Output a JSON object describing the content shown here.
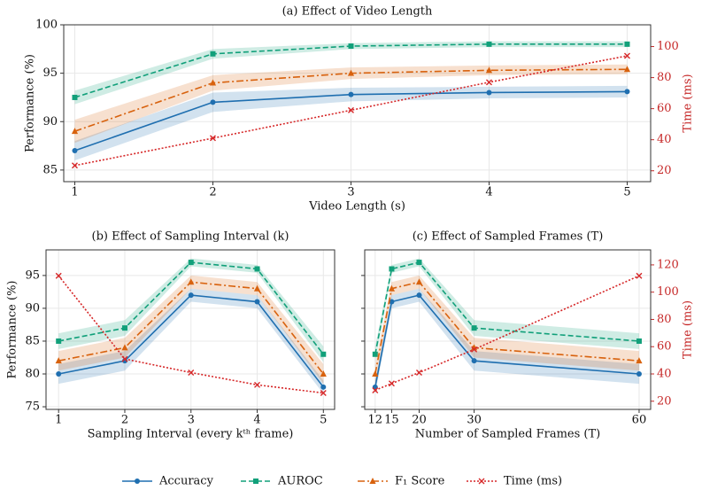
{
  "chart_data": [
    {
      "type": "line",
      "title": "(a) Effect of Video Length",
      "xlabel": "Video Length (s)",
      "ylabel": "Performance (%)",
      "y2label": "Time (ms)",
      "x": [
        1,
        2,
        3,
        4,
        5
      ],
      "xticks": [
        1,
        2,
        3,
        4,
        5
      ],
      "xlim": [
        0.92,
        5.17
      ],
      "ylim": [
        83.8,
        100
      ],
      "yticks": [
        85,
        90,
        95,
        100
      ],
      "y2lim": [
        13,
        114
      ],
      "y2ticks": [
        20,
        40,
        60,
        80,
        100
      ],
      "grid": true,
      "series": [
        {
          "name": "Accuracy",
          "color": "#1f6fb0",
          "style": "solid",
          "marker": "circle",
          "values": [
            87,
            92,
            92.8,
            93,
            93.1
          ],
          "errors": [
            1.0,
            1.0,
            0.7,
            0.6,
            0.6
          ]
        },
        {
          "name": "AUROC",
          "color": "#11a07a",
          "style": "dashed",
          "marker": "square",
          "values": [
            92.5,
            97,
            97.8,
            98,
            98
          ],
          "errors": [
            0.7,
            0.5,
            0.3,
            0.3,
            0.3
          ]
        },
        {
          "name": "F₁ Score",
          "color": "#d8620e",
          "style": "dashdot",
          "marker": "triangle",
          "values": [
            89,
            94,
            95,
            95.3,
            95.4
          ],
          "errors": [
            1.2,
            0.8,
            0.6,
            0.5,
            0.5
          ]
        },
        {
          "name": "Time (ms)",
          "color": "#d62728",
          "style": "dotted",
          "marker": "x",
          "axis": "y2",
          "values": [
            23.4,
            41,
            59,
            77,
            94
          ]
        }
      ]
    },
    {
      "type": "line",
      "title": "(b) Effect of Sampling Interval (k)",
      "xlabel": "Sampling Interval (every kᵗʰ frame)",
      "ylabel": "Performance (%)",
      "x": [
        1,
        2,
        3,
        4,
        5
      ],
      "xticks": [
        1,
        2,
        3,
        4,
        5
      ],
      "xlim": [
        0.81,
        5.17
      ],
      "ylim": [
        74.6,
        98.9
      ],
      "yticks": [
        75,
        80,
        85,
        90,
        95
      ],
      "y2lim": [
        14,
        131
      ],
      "grid": true,
      "series": [
        {
          "color": "#1f6fb0",
          "style": "solid",
          "marker": "circle",
          "values": [
            80,
            82,
            92,
            91,
            78
          ],
          "errors": [
            1.5,
            1.5,
            1.0,
            1.0,
            1.0
          ]
        },
        {
          "color": "#11a07a",
          "style": "dashed",
          "marker": "square",
          "values": [
            85,
            87,
            97,
            96,
            83
          ],
          "errors": [
            1.2,
            1.2,
            0.6,
            0.6,
            1.2
          ]
        },
        {
          "color": "#d8620e",
          "style": "dashdot",
          "marker": "triangle",
          "values": [
            82,
            84,
            94,
            93,
            80
          ],
          "errors": [
            1.5,
            1.5,
            1.0,
            1.0,
            1.5
          ]
        },
        {
          "color": "#d62728",
          "style": "dotted",
          "marker": "x",
          "axis": "y2",
          "values": [
            112,
            51,
            41,
            32,
            26
          ]
        }
      ]
    },
    {
      "type": "line",
      "title": "(c) Effect of Sampled Frames (T)",
      "xlabel": "Number of Sampled Frames (T)",
      "y2label": "Time (ms)",
      "x": [
        12,
        15,
        20,
        30,
        60
      ],
      "xticks": [
        12,
        15,
        20,
        30,
        60
      ],
      "xlim": [
        10.1,
        62.1
      ],
      "ylim": [
        74.6,
        98.9
      ],
      "yticks": [
        75,
        80,
        85,
        90,
        95
      ],
      "y2lim": [
        14,
        131
      ],
      "y2ticks": [
        20,
        40,
        60,
        80,
        100,
        120
      ],
      "grid": true,
      "series": [
        {
          "color": "#1f6fb0",
          "style": "solid",
          "marker": "circle",
          "values": [
            78,
            91,
            92,
            82,
            80
          ],
          "errors": [
            1.0,
            1.0,
            1.0,
            1.5,
            1.5
          ]
        },
        {
          "color": "#11a07a",
          "style": "dashed",
          "marker": "square",
          "values": [
            83,
            96,
            97,
            87,
            85
          ],
          "errors": [
            1.2,
            0.6,
            0.6,
            1.2,
            1.2
          ]
        },
        {
          "color": "#d8620e",
          "style": "dashdot",
          "marker": "triangle",
          "values": [
            80,
            93,
            94,
            84,
            82
          ],
          "errors": [
            1.5,
            1.0,
            1.0,
            1.5,
            1.5
          ]
        },
        {
          "color": "#d62728",
          "style": "dotted",
          "marker": "x",
          "axis": "y2",
          "values": [
            28,
            33,
            41,
            58,
            112
          ]
        }
      ]
    }
  ]
}
